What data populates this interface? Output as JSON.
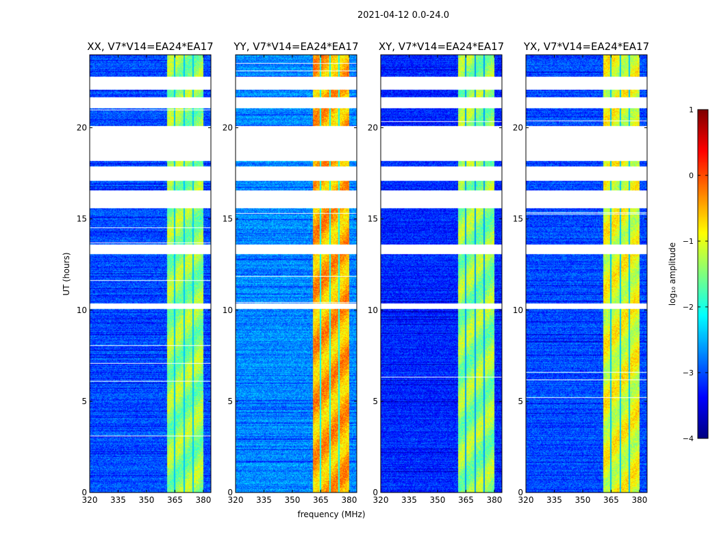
{
  "figure_title": "2021-04-12 0.0-24.0",
  "chart_data": {
    "type": "heatmap",
    "xlabel": "frequency (MHz)",
    "ylabel": "UT (hours)",
    "xlim": [
      320,
      384
    ],
    "ylim": [
      0,
      24
    ],
    "xticks": [
      320,
      335,
      350,
      365,
      380
    ],
    "yticks": [
      0,
      5,
      10,
      15,
      20
    ],
    "flagged_time_ranges_hours": [
      [
        22.1,
        22.8
      ],
      [
        21.1,
        21.7
      ],
      [
        18.2,
        20.1
      ],
      [
        17.1,
        17.9
      ],
      [
        15.6,
        16.6
      ],
      [
        13.1,
        13.6
      ],
      [
        10.1,
        10.4
      ]
    ],
    "bright_band_mhz": [
      360.5,
      380
    ],
    "panels": [
      {
        "title": "XX, V7*V14=EA24*EA17",
        "background_log_amp": -3.0,
        "band_log_amp": -1.4
      },
      {
        "title": "YY, V7*V14=EA24*EA17",
        "background_log_amp": -2.7,
        "band_log_amp": -0.5
      },
      {
        "title": "XY, V7*V14=EA24*EA17",
        "background_log_amp": -3.2,
        "band_log_amp": -1.4
      },
      {
        "title": "YX, V7*V14=EA24*EA17",
        "background_log_amp": -3.0,
        "band_log_amp": -1.0
      }
    ],
    "colorbar": {
      "label": "log₁₀ amplitude",
      "range": [
        -4,
        1
      ],
      "ticks": [
        -4,
        -3,
        -2,
        -1,
        0,
        1
      ],
      "colormap": "jet"
    }
  }
}
